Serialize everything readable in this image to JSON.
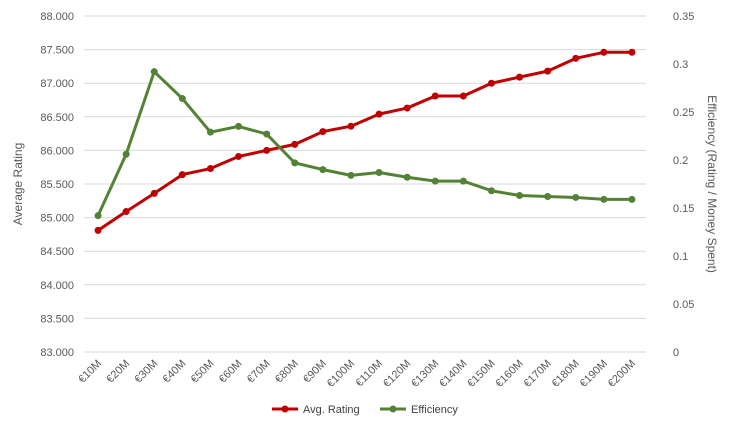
{
  "chart_data": {
    "type": "line",
    "categories": [
      "€10M",
      "€20M",
      "€30M",
      "€40M",
      "€50M",
      "€60M",
      "€70M",
      "€80M",
      "€90M",
      "€100M",
      "€110M",
      "€120M",
      "€130M",
      "€140M",
      "€150M",
      "€160M",
      "€170M",
      "€180M",
      "€190M",
      "€200M"
    ],
    "series": [
      {
        "name": "Avg. Rating",
        "axis": "left",
        "color": "#c00000",
        "values": [
          84.81,
          85.09,
          85.36,
          85.64,
          85.73,
          85.91,
          86.0,
          86.09,
          86.28,
          86.36,
          86.54,
          86.63,
          86.81,
          86.81,
          87.0,
          87.09,
          87.18,
          87.37,
          87.46,
          87.46
        ]
      },
      {
        "name": "Efficiency",
        "axis": "right",
        "color": "#548235",
        "values": [
          0.142,
          0.206,
          0.292,
          0.264,
          0.229,
          0.235,
          0.227,
          0.197,
          0.19,
          0.184,
          0.187,
          0.182,
          0.178,
          0.178,
          0.168,
          0.163,
          0.162,
          0.161,
          0.159,
          0.159
        ]
      }
    ],
    "yleft": {
      "label": "Average  Rating",
      "ylim": [
        83.0,
        88.0
      ],
      "ticks": [
        "83.000",
        "83.500",
        "84.000",
        "84.500",
        "85.000",
        "85.500",
        "86.000",
        "86.500",
        "87.000",
        "87.500",
        "88.000"
      ]
    },
    "yright": {
      "label": "Efficiency  (Rating / Money  Spent)",
      "ylim": [
        0,
        0.35
      ],
      "ticks": [
        "0",
        "0.05",
        "0.1",
        "0.15",
        "0.2",
        "0.25",
        "0.3",
        "0.35"
      ]
    },
    "grid": true,
    "legend_position": "bottom"
  }
}
